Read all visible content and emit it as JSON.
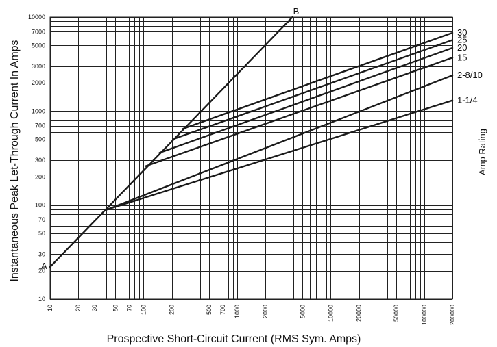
{
  "chart_data": {
    "type": "line",
    "xscale": "log",
    "yscale": "log",
    "xlim": [
      10,
      200000
    ],
    "ylim": [
      10,
      10000
    ],
    "xlabel": "Prospective Short-Circuit Current (RMS Sym. Amps)",
    "ylabel": "Instantaneous Peak Let-Through Current In Amps",
    "right_label": "Amp Rating",
    "grid": true,
    "x_ticks": [
      {
        "value": 10,
        "label": "10"
      },
      {
        "value": 20,
        "label": "20"
      },
      {
        "value": 30,
        "label": "30"
      },
      {
        "value": 50,
        "label": "50"
      },
      {
        "value": 70,
        "label": "70"
      },
      {
        "value": 100,
        "label": "100"
      },
      {
        "value": 200,
        "label": "200"
      },
      {
        "value": 500,
        "label": "500"
      },
      {
        "value": 700,
        "label": "700"
      },
      {
        "value": 1000,
        "label": "1000"
      },
      {
        "value": 2000,
        "label": "2000"
      },
      {
        "value": 5000,
        "label": "5000"
      },
      {
        "value": 10000,
        "label": "10000"
      },
      {
        "value": 20000,
        "label": "20000"
      },
      {
        "value": 50000,
        "label": "50000"
      },
      {
        "value": 100000,
        "label": "100000"
      },
      {
        "value": 200000,
        "label": "200000"
      }
    ],
    "x_grid": [
      10,
      20,
      30,
      40,
      50,
      60,
      70,
      80,
      90,
      100,
      200,
      300,
      400,
      500,
      600,
      700,
      800,
      900,
      1000,
      2000,
      3000,
      4000,
      5000,
      6000,
      7000,
      8000,
      9000,
      10000,
      20000,
      30000,
      40000,
      50000,
      60000,
      70000,
      80000,
      90000,
      100000,
      200000
    ],
    "y_ticks": [
      {
        "value": 10,
        "label": "10"
      },
      {
        "value": 20,
        "label": "20"
      },
      {
        "value": 30,
        "label": "30"
      },
      {
        "value": 50,
        "label": "50"
      },
      {
        "value": 70,
        "label": "70"
      },
      {
        "value": 100,
        "label": "100"
      },
      {
        "value": 200,
        "label": "200"
      },
      {
        "value": 300,
        "label": "300"
      },
      {
        "value": 500,
        "label": "500"
      },
      {
        "value": 700,
        "label": "700"
      },
      {
        "value": 1000,
        "label": "1000"
      },
      {
        "value": 2000,
        "label": "2000"
      },
      {
        "value": 3000,
        "label": "3000"
      },
      {
        "value": 5000,
        "label": "5000"
      },
      {
        "value": 7000,
        "label": "7000"
      },
      {
        "value": 10000,
        "label": "10000"
      }
    ],
    "y_grid": [
      10,
      20,
      30,
      40,
      50,
      60,
      70,
      80,
      90,
      100,
      200,
      300,
      400,
      500,
      600,
      700,
      800,
      900,
      1000,
      2000,
      3000,
      4000,
      5000,
      6000,
      7000,
      8000,
      9000,
      10000
    ],
    "point_labels": [
      {
        "text": "A",
        "x": 10,
        "y": 22
      },
      {
        "text": "B",
        "x": 3900,
        "y": 10000
      }
    ],
    "series": [
      {
        "name": "A–B",
        "points": [
          [
            10,
            22
          ],
          [
            3900,
            10000
          ]
        ]
      },
      {
        "name": "1-1/4",
        "points": [
          [
            41,
            90
          ],
          [
            200000,
            1300
          ]
        ]
      },
      {
        "name": "2-8/10",
        "points": [
          [
            41,
            90
          ],
          [
            200000,
            2400
          ]
        ]
      },
      {
        "name": "15",
        "points": [
          [
            105,
            260
          ],
          [
            200000,
            3700
          ]
        ]
      },
      {
        "name": "20",
        "points": [
          [
            148,
            360
          ],
          [
            200000,
            4700
          ]
        ]
      },
      {
        "name": "25",
        "points": [
          [
            215,
            510
          ],
          [
            200000,
            5700
          ]
        ]
      },
      {
        "name": "30",
        "points": [
          [
            265,
            650
          ],
          [
            200000,
            6800
          ]
        ]
      }
    ]
  }
}
